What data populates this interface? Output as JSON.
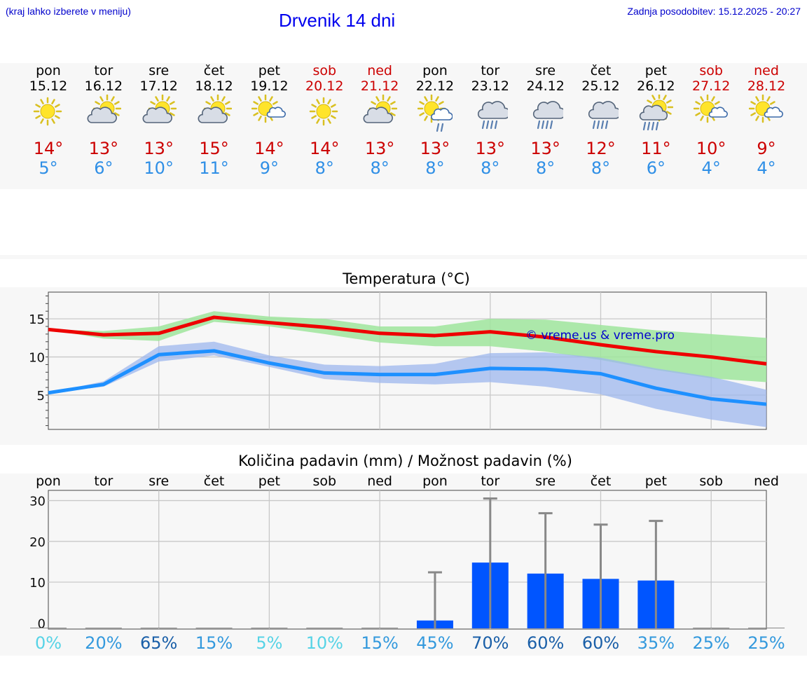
{
  "header": {
    "hint": "(kraj lahko izberete v meniju)",
    "title": "Drvenik 14 dni",
    "updated": "Zadnja posodobitev: 15.12.2025 - 20:27"
  },
  "colors": {
    "hot": "#cc0000",
    "cold": "#2f8fe6",
    "bar": "#0055ff",
    "band_hi": "#9fe59c",
    "band_lo": "#9db7ee"
  },
  "days": [
    {
      "name": "pon",
      "date": "15.12",
      "icon": "sun-icon",
      "hi": "14°",
      "lo": "5°",
      "weekend": false
    },
    {
      "name": "tor",
      "date": "16.12",
      "icon": "sun-cloud-icon",
      "hi": "13°",
      "lo": "6°",
      "weekend": false
    },
    {
      "name": "sre",
      "date": "17.12",
      "icon": "sun-cloud-icon",
      "hi": "13°",
      "lo": "10°",
      "weekend": false
    },
    {
      "name": "čet",
      "date": "18.12",
      "icon": "sun-cloud-icon",
      "hi": "15°",
      "lo": "11°",
      "weekend": false
    },
    {
      "name": "pet",
      "date": "19.12",
      "icon": "sun-small-cloud-icon",
      "hi": "14°",
      "lo": "9°",
      "weekend": false
    },
    {
      "name": "sob",
      "date": "20.12",
      "icon": "sun-icon",
      "hi": "14°",
      "lo": "8°",
      "weekend": true
    },
    {
      "name": "ned",
      "date": "21.12",
      "icon": "sun-cloud-icon",
      "hi": "13°",
      "lo": "8°",
      "weekend": true
    },
    {
      "name": "pon",
      "date": "22.12",
      "icon": "sun-rain-icon",
      "hi": "13°",
      "lo": "8°",
      "weekend": false
    },
    {
      "name": "tor",
      "date": "23.12",
      "icon": "cloud-rain-icon",
      "hi": "13°",
      "lo": "8°",
      "weekend": false
    },
    {
      "name": "sre",
      "date": "24.12",
      "icon": "cloud-rain-icon",
      "hi": "13°",
      "lo": "8°",
      "weekend": false
    },
    {
      "name": "čet",
      "date": "25.12",
      "icon": "cloud-rain-icon",
      "hi": "12°",
      "lo": "8°",
      "weekend": false
    },
    {
      "name": "pet",
      "date": "26.12",
      "icon": "sun-cloud-rain-icon",
      "hi": "11°",
      "lo": "6°",
      "weekend": false
    },
    {
      "name": "sob",
      "date": "27.12",
      "icon": "sun-small-cloud-icon",
      "hi": "10°",
      "lo": "4°",
      "weekend": true
    },
    {
      "name": "ned",
      "date": "28.12",
      "icon": "sun-small-cloud-icon",
      "hi": "9°",
      "lo": "4°",
      "weekend": true
    }
  ],
  "chart_data": [
    {
      "type": "line",
      "title": "Temperatura (°C)",
      "watermark": "© vreme.us & vreme.pro",
      "x": [
        0,
        1,
        2,
        3,
        4,
        5,
        6,
        7,
        8,
        9,
        10,
        11,
        12,
        13
      ],
      "ylim": [
        0.5,
        18.5
      ],
      "yticks": [
        5,
        10,
        15
      ],
      "series": [
        {
          "name": "max",
          "values": [
            13.6,
            12.9,
            13.1,
            15.2,
            14.5,
            13.9,
            13.1,
            12.8,
            13.3,
            12.6,
            11.6,
            10.7,
            10.0,
            9.1
          ],
          "band_low": [
            13.6,
            12.4,
            12.1,
            14.6,
            14.0,
            13.0,
            11.9,
            11.4,
            11.4,
            10.7,
            9.6,
            8.3,
            7.2,
            6.7
          ],
          "band_high": [
            13.6,
            13.4,
            14.0,
            16.0,
            15.3,
            15.0,
            14.0,
            14.0,
            15.0,
            14.9,
            14.2,
            13.5,
            13.0,
            12.5
          ]
        },
        {
          "name": "min",
          "values": [
            5.3,
            6.4,
            10.3,
            10.8,
            9.2,
            7.9,
            7.7,
            7.7,
            8.5,
            8.4,
            7.8,
            5.9,
            4.5,
            3.8
          ],
          "band_low": [
            5.3,
            6.1,
            9.4,
            10.2,
            8.7,
            7.1,
            6.6,
            6.4,
            6.7,
            6.1,
            5.1,
            3.2,
            1.8,
            0.8
          ],
          "band_high": [
            5.3,
            6.8,
            11.4,
            12.0,
            10.2,
            9.0,
            8.8,
            9.1,
            10.5,
            10.6,
            9.9,
            8.5,
            7.4,
            5.7
          ]
        }
      ]
    },
    {
      "type": "bar",
      "title": "Količina padavin (mm) / Možnost padavin (%)",
      "categories": [
        "pon",
        "tor",
        "sre",
        "čet",
        "pet",
        "sob",
        "ned",
        "pon",
        "tor",
        "sre",
        "čet",
        "pet",
        "sob",
        "ned"
      ],
      "ylim": [
        -1.5,
        32.5
      ],
      "yticks": [
        0,
        10,
        20,
        30
      ],
      "values": [
        0,
        0,
        0,
        0,
        0,
        0,
        0,
        0.6,
        14.8,
        12.1,
        10.8,
        10.4,
        0,
        0
      ],
      "error_high": [
        0,
        0,
        0,
        0,
        0,
        0,
        0,
        12.4,
        30.5,
        26.9,
        24.1,
        25.0,
        0,
        0
      ],
      "chance": [
        "0%",
        "20%",
        "65%",
        "15%",
        "5%",
        "10%",
        "15%",
        "45%",
        "70%",
        "60%",
        "60%",
        "35%",
        "25%",
        "25%"
      ],
      "chance_colors": [
        "#56d3e6",
        "#3399dd",
        "#1a5fa8",
        "#3399dd",
        "#56d3e6",
        "#56d3e6",
        "#3399dd",
        "#3399dd",
        "#1a5fa8",
        "#1a5fa8",
        "#1a5fa8",
        "#3399dd",
        "#3399dd",
        "#3399dd"
      ]
    }
  ]
}
